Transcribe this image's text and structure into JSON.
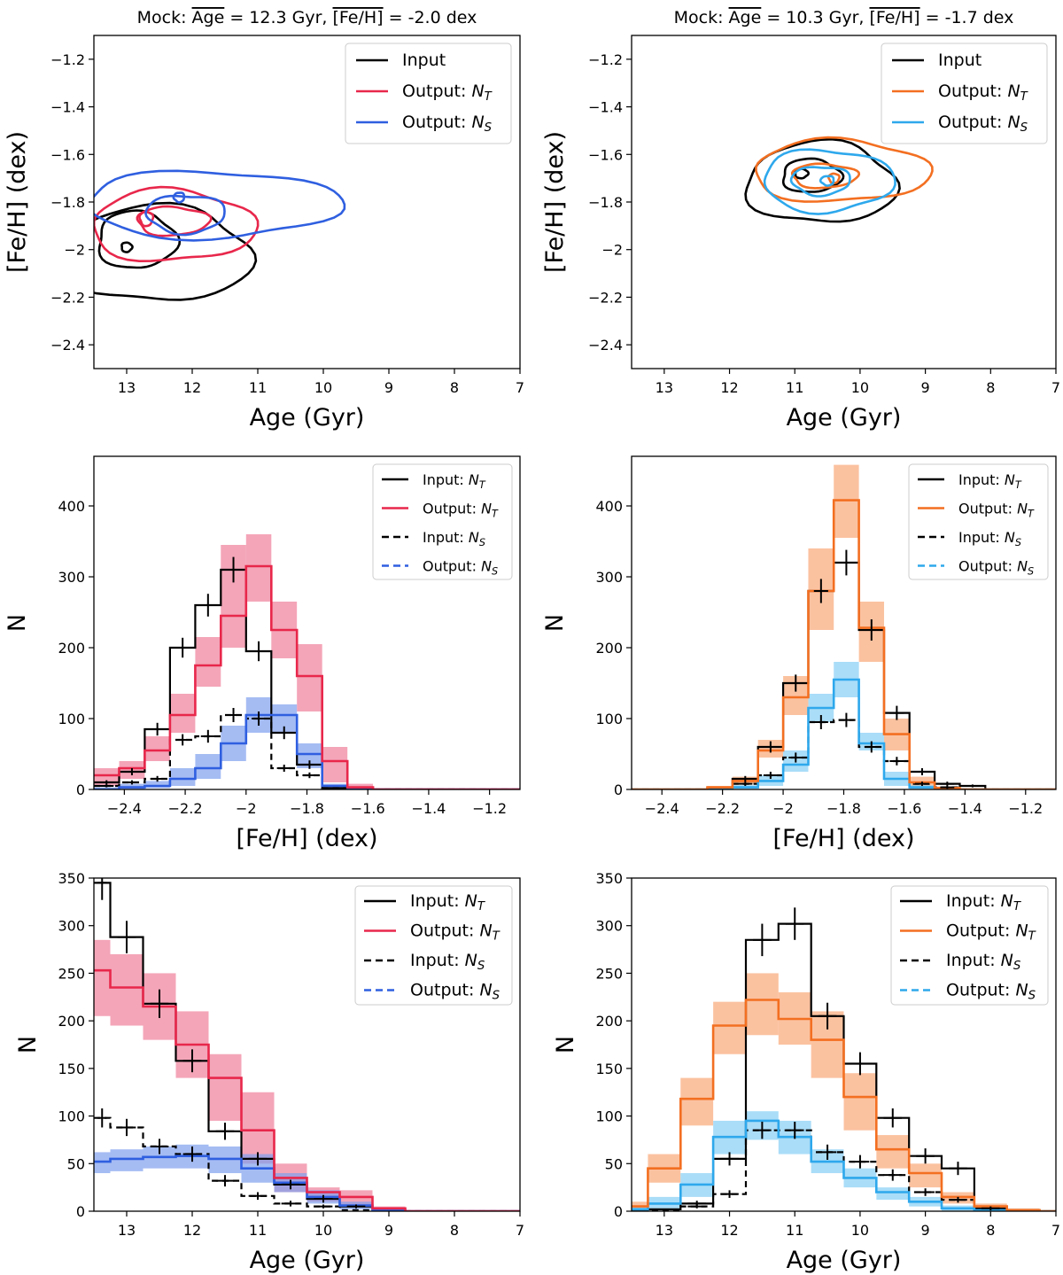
{
  "colors": {
    "input": "#000000",
    "crimson": "#e8274b",
    "blue": "#2f5fe0",
    "orange": "#f36f21",
    "skyblue": "#2ea8ec",
    "crimson_fill": "#f07f9a",
    "blue_fill": "#7f9fee",
    "orange_fill": "#f9a878",
    "skyblue_fill": "#86cff5"
  },
  "chart_data": [
    {
      "id": "contour-left",
      "type": "contour",
      "title": "Mock: Age = 12.3 Gyr, [Fe/H] = -2.0 dex",
      "title_parts": {
        "prefix": "Mock: ",
        "age_symbol": "Age",
        "age_value": " = 12.3 Gyr, ",
        "feh_symbol": "[Fe/H]",
        "feh_value": " = -2.0 dex"
      },
      "xlabel": "Age (Gyr)",
      "ylabel": "[Fe/H] (dex)",
      "xlim": [
        13.5,
        7
      ],
      "ylim": [
        -2.5,
        -1.1
      ],
      "xticks": [
        13,
        12,
        11,
        10,
        9,
        8,
        7
      ],
      "yticks": [
        -1.2,
        -1.4,
        -1.6,
        -1.8,
        -2.0,
        -2.2,
        -2.4
      ],
      "legend": [
        {
          "label": "Input",
          "sub": "",
          "color": "#000000"
        },
        {
          "label": "Output: N",
          "sub": "T",
          "color": "#e8274b"
        },
        {
          "label": "Output: N",
          "sub": "S",
          "color": "#2f5fe0"
        }
      ],
      "contours": [
        {
          "series": "Input",
          "color": "#000000",
          "levels": [
            {
              "cx": 12.55,
              "cy": -2.02,
              "rx": 1.45,
              "ry": 0.2
            },
            {
              "cx": 12.85,
              "cy": -1.96,
              "rx": 0.6,
              "ry": 0.12
            },
            {
              "cx": 13.0,
              "cy": -1.99,
              "rx": 0.08,
              "ry": 0.02
            }
          ]
        },
        {
          "series": "Output: NT",
          "color": "#e8274b",
          "levels": [
            {
              "cx": 12.3,
              "cy": -1.9,
              "rx": 1.25,
              "ry": 0.15
            },
            {
              "cx": 12.3,
              "cy": -1.88,
              "rx": 0.55,
              "ry": 0.06
            },
            {
              "cx": 12.7,
              "cy": -1.87,
              "rx": 0.1,
              "ry": 0.03
            }
          ]
        },
        {
          "series": "Output: NS",
          "color": "#2f5fe0",
          "levels": [
            {
              "cx": 11.7,
              "cy": -1.81,
              "rx": 1.95,
              "ry": 0.14
            },
            {
              "cx": 12.1,
              "cy": -1.85,
              "rx": 0.6,
              "ry": 0.08
            },
            {
              "cx": 12.2,
              "cy": -1.78,
              "rx": 0.08,
              "ry": 0.02
            }
          ]
        }
      ]
    },
    {
      "id": "contour-right",
      "type": "contour",
      "title": "Mock: Age = 10.3 Gyr, [Fe/H] = -1.7 dex",
      "title_parts": {
        "prefix": "Mock: ",
        "age_symbol": "Age",
        "age_value": " = 10.3 Gyr, ",
        "feh_symbol": "[Fe/H]",
        "feh_value": " = -1.7 dex"
      },
      "xlabel": "Age (Gyr)",
      "ylabel": "[Fe/H] (dex)",
      "xlim": [
        13.5,
        7
      ],
      "ylim": [
        -2.5,
        -1.1
      ],
      "xticks": [
        13,
        12,
        11,
        10,
        9,
        8,
        7
      ],
      "yticks": [
        -1.2,
        -1.4,
        -1.6,
        -1.8,
        -2.0,
        -2.2,
        -2.4
      ],
      "legend": [
        {
          "label": "Input",
          "sub": "",
          "color": "#000000"
        },
        {
          "label": "Output: N",
          "sub": "T",
          "color": "#f36f21"
        },
        {
          "label": "Output: N",
          "sub": "S",
          "color": "#2ea8ec"
        }
      ],
      "contours": [
        {
          "series": "Input",
          "color": "#000000",
          "levels": [
            {
              "cx": 10.6,
              "cy": -1.72,
              "rx": 1.15,
              "ry": 0.17
            },
            {
              "cx": 10.75,
              "cy": -1.69,
              "rx": 0.45,
              "ry": 0.07
            },
            {
              "cx": 10.9,
              "cy": -1.68,
              "rx": 0.1,
              "ry": 0.02
            }
          ]
        },
        {
          "series": "Output: NT",
          "color": "#f36f21",
          "levels": [
            {
              "cx": 10.3,
              "cy": -1.67,
              "rx": 1.35,
              "ry": 0.13
            },
            {
              "cx": 10.55,
              "cy": -1.69,
              "rx": 0.5,
              "ry": 0.05
            },
            {
              "cx": 10.4,
              "cy": -1.7,
              "rx": 0.08,
              "ry": 0.02
            }
          ]
        },
        {
          "series": "Output: NS",
          "color": "#2ea8ec",
          "levels": [
            {
              "cx": 10.5,
              "cy": -1.71,
              "rx": 1.0,
              "ry": 0.13
            },
            {
              "cx": 10.6,
              "cy": -1.71,
              "rx": 0.45,
              "ry": 0.06
            },
            {
              "cx": 10.5,
              "cy": -1.71,
              "rx": 0.1,
              "ry": 0.02
            }
          ]
        }
      ]
    },
    {
      "id": "feh-hist-left",
      "type": "histogram",
      "xlabel": "[Fe/H] (dex)",
      "ylabel": "N",
      "xlim": [
        -2.5,
        -1.1
      ],
      "ylim": [
        0,
        470
      ],
      "xticks": [
        -2.4,
        -2.2,
        -2.0,
        -1.8,
        -1.6,
        -1.4,
        -1.2
      ],
      "yticks": [
        0,
        100,
        200,
        300,
        400
      ],
      "edges": [
        -2.5,
        -2.417,
        -2.333,
        -2.25,
        -2.167,
        -2.083,
        -2.0,
        -1.917,
        -1.833,
        -1.75,
        -1.667,
        -1.583,
        -1.5,
        -1.417,
        -1.333,
        -1.25,
        -1.167,
        -1.1
      ],
      "legend": [
        {
          "label": "Input: N",
          "sub": "T",
          "color": "#000000",
          "dash": false
        },
        {
          "label": "Output: N",
          "sub": "T",
          "color": "#e8274b",
          "dash": false
        },
        {
          "label": "Input: N",
          "sub": "S",
          "color": "#000000",
          "dash": true
        },
        {
          "label": "Output: N",
          "sub": "S",
          "color": "#2f5fe0",
          "dash": true
        }
      ],
      "input_T": [
        10,
        25,
        85,
        200,
        260,
        310,
        195,
        80,
        35,
        2,
        0,
        0,
        0,
        0,
        0,
        0,
        0
      ],
      "input_T_err": [
        3,
        5,
        9,
        14,
        16,
        18,
        14,
        9,
        6,
        1,
        0,
        0,
        0,
        0,
        0,
        0,
        0
      ],
      "output_T": [
        20,
        30,
        55,
        105,
        175,
        245,
        315,
        225,
        160,
        40,
        3,
        0,
        0,
        0,
        0,
        0,
        0
      ],
      "output_T_low": [
        5,
        15,
        40,
        80,
        145,
        200,
        265,
        185,
        110,
        10,
        0,
        0,
        0,
        0,
        0,
        0,
        0
      ],
      "output_T_high": [
        30,
        40,
        75,
        135,
        215,
        345,
        360,
        265,
        205,
        60,
        8,
        0,
        0,
        0,
        0,
        0,
        0
      ],
      "input_S": [
        5,
        10,
        15,
        70,
        75,
        105,
        100,
        30,
        20,
        2,
        0,
        0,
        0,
        0,
        0,
        0,
        0
      ],
      "input_S_err": [
        2,
        3,
        4,
        8,
        9,
        10,
        10,
        5,
        4,
        1,
        0,
        0,
        0,
        0,
        0,
        0,
        0
      ],
      "output_S": [
        0,
        3,
        5,
        15,
        30,
        65,
        105,
        105,
        50,
        5,
        0,
        0,
        0,
        0,
        0,
        0,
        0
      ],
      "output_S_low": [
        0,
        0,
        2,
        5,
        15,
        40,
        80,
        80,
        30,
        0,
        0,
        0,
        0,
        0,
        0,
        0,
        0
      ],
      "output_S_high": [
        3,
        8,
        12,
        30,
        50,
        90,
        130,
        120,
        65,
        8,
        0,
        0,
        0,
        0,
        0,
        0,
        0
      ]
    },
    {
      "id": "feh-hist-right",
      "type": "histogram",
      "xlabel": "[Fe/H] (dex)",
      "ylabel": "N",
      "xlim": [
        -2.5,
        -1.1
      ],
      "ylim": [
        0,
        470
      ],
      "xticks": [
        -2.4,
        -2.2,
        -2.0,
        -1.8,
        -1.6,
        -1.4,
        -1.2
      ],
      "yticks": [
        0,
        100,
        200,
        300,
        400
      ],
      "edges": [
        -2.5,
        -2.333,
        -2.25,
        -2.167,
        -2.083,
        -2.0,
        -1.917,
        -1.833,
        -1.75,
        -1.667,
        -1.583,
        -1.5,
        -1.417,
        -1.333,
        -1.25,
        -1.167,
        -1.1
      ],
      "legend": [
        {
          "label": "Input: N",
          "sub": "T",
          "color": "#000000",
          "dash": false
        },
        {
          "label": "Output: N",
          "sub": "T",
          "color": "#f36f21",
          "dash": false
        },
        {
          "label": "Input: N",
          "sub": "S",
          "color": "#000000",
          "dash": true
        },
        {
          "label": "Output: N",
          "sub": "S",
          "color": "#2ea8ec",
          "dash": true
        }
      ],
      "input_T": [
        0,
        0,
        2,
        15,
        60,
        150,
        280,
        320,
        225,
        108,
        25,
        8,
        5,
        0,
        0,
        0
      ],
      "input_T_err": [
        0,
        0,
        1,
        4,
        8,
        12,
        17,
        18,
        15,
        10,
        5,
        3,
        2,
        0,
        0,
        0
      ],
      "output_T": [
        0,
        0,
        3,
        12,
        55,
        130,
        280,
        408,
        228,
        78,
        10,
        2,
        0,
        0,
        0,
        0
      ],
      "output_T_low": [
        0,
        0,
        1,
        8,
        45,
        105,
        225,
        355,
        180,
        55,
        5,
        0,
        0,
        0,
        0,
        0
      ],
      "output_T_high": [
        0,
        0,
        5,
        18,
        70,
        160,
        340,
        458,
        265,
        100,
        18,
        4,
        0,
        0,
        0,
        0
      ],
      "input_S": [
        0,
        0,
        1,
        8,
        20,
        45,
        95,
        98,
        60,
        40,
        8,
        3,
        0,
        0,
        0,
        0
      ],
      "input_S_err": [
        0,
        0,
        1,
        3,
        5,
        7,
        10,
        10,
        8,
        6,
        3,
        2,
        0,
        0,
        0,
        0
      ],
      "output_S": [
        0,
        0,
        0,
        3,
        12,
        35,
        115,
        155,
        65,
        15,
        3,
        0,
        0,
        0,
        0,
        0
      ],
      "output_S_low": [
        0,
        0,
        0,
        1,
        5,
        25,
        95,
        130,
        55,
        5,
        0,
        0,
        0,
        0,
        0,
        0
      ],
      "output_S_high": [
        0,
        0,
        2,
        6,
        20,
        55,
        135,
        180,
        80,
        25,
        6,
        0,
        0,
        0,
        0,
        0
      ]
    },
    {
      "id": "age-hist-left",
      "type": "histogram",
      "xlabel": "Age (Gyr)",
      "ylabel": "N",
      "xlim": [
        13.5,
        7
      ],
      "ylim": [
        0,
        350
      ],
      "xticks": [
        13,
        12,
        11,
        10,
        9,
        8,
        7
      ],
      "yticks": [
        0,
        50,
        100,
        150,
        200,
        250,
        300,
        350
      ],
      "edges": [
        13.5,
        13.25,
        12.75,
        12.25,
        11.75,
        11.25,
        10.75,
        10.25,
        9.75,
        9.25,
        8.75,
        8.25,
        7.75,
        7.25,
        7.0
      ],
      "legend": [
        {
          "label": "Input: N",
          "sub": "T",
          "color": "#000000",
          "dash": false
        },
        {
          "label": "Output: N",
          "sub": "T",
          "color": "#e8274b",
          "dash": false
        },
        {
          "label": "Input: N",
          "sub": "S",
          "color": "#000000",
          "dash": true
        },
        {
          "label": "Output: N",
          "sub": "S",
          "color": "#2f5fe0",
          "dash": true
        }
      ],
      "input_T": [
        345,
        288,
        218,
        158,
        84,
        55,
        28,
        13,
        5,
        1,
        0,
        0,
        0,
        0
      ],
      "input_T_err": [
        18,
        17,
        15,
        12,
        9,
        7,
        5,
        4,
        2,
        1,
        0,
        0,
        0,
        0
      ],
      "output_T": [
        253,
        235,
        215,
        175,
        140,
        85,
        35,
        20,
        15,
        3,
        0,
        0,
        0,
        0
      ],
      "output_T_low": [
        205,
        195,
        180,
        140,
        95,
        50,
        20,
        10,
        5,
        0,
        0,
        0,
        0,
        0
      ],
      "output_T_high": [
        285,
        270,
        250,
        210,
        165,
        125,
        50,
        25,
        22,
        5,
        0,
        0,
        0,
        0
      ],
      "input_S": [
        98,
        88,
        68,
        60,
        32,
        16,
        8,
        5,
        1,
        0,
        0,
        0,
        0,
        0
      ],
      "input_S_err": [
        10,
        9,
        8,
        8,
        6,
        4,
        3,
        2,
        1,
        0,
        0,
        0,
        0,
        0
      ],
      "output_S": [
        52,
        55,
        57,
        58,
        55,
        45,
        30,
        15,
        6,
        1,
        0,
        0,
        0,
        0
      ],
      "output_S_low": [
        40,
        42,
        45,
        45,
        40,
        30,
        20,
        8,
        2,
        0,
        0,
        0,
        0,
        0
      ],
      "output_S_high": [
        62,
        65,
        68,
        70,
        68,
        60,
        40,
        22,
        10,
        3,
        0,
        0,
        0,
        0
      ]
    },
    {
      "id": "age-hist-right",
      "type": "histogram",
      "xlabel": "Age (Gyr)",
      "ylabel": "N",
      "xlim": [
        13.5,
        7
      ],
      "ylim": [
        0,
        350
      ],
      "xticks": [
        13,
        12,
        11,
        10,
        9,
        8,
        7
      ],
      "yticks": [
        0,
        50,
        100,
        150,
        200,
        250,
        300,
        350
      ],
      "edges": [
        13.5,
        13.25,
        12.75,
        12.25,
        11.75,
        11.25,
        10.75,
        10.25,
        9.75,
        9.25,
        8.75,
        8.25,
        7.75,
        7.25,
        7.0
      ],
      "legend": [
        {
          "label": "Input: N",
          "sub": "T",
          "color": "#000000",
          "dash": false
        },
        {
          "label": "Output: N",
          "sub": "T",
          "color": "#f36f21",
          "dash": false
        },
        {
          "label": "Input: N",
          "sub": "S",
          "color": "#000000",
          "dash": true
        },
        {
          "label": "Output: N",
          "sub": "S",
          "color": "#2ea8ec",
          "dash": true
        }
      ],
      "input_T": [
        0,
        2,
        8,
        55,
        285,
        302,
        205,
        155,
        98,
        58,
        45,
        3,
        1,
        0
      ],
      "input_T_err": [
        0,
        1,
        3,
        7,
        17,
        17,
        14,
        12,
        10,
        8,
        7,
        2,
        1,
        0
      ],
      "output_T": [
        5,
        45,
        118,
        195,
        222,
        202,
        180,
        120,
        65,
        40,
        15,
        5,
        1,
        0
      ],
      "output_T_low": [
        2,
        30,
        90,
        165,
        185,
        175,
        140,
        85,
        45,
        25,
        8,
        2,
        0,
        0
      ],
      "output_T_high": [
        10,
        60,
        140,
        220,
        250,
        230,
        210,
        145,
        80,
        50,
        20,
        8,
        3,
        0
      ],
      "input_S": [
        0,
        1,
        5,
        18,
        85,
        85,
        62,
        52,
        38,
        20,
        12,
        2,
        0,
        0
      ],
      "input_S_err": [
        0,
        1,
        2,
        4,
        9,
        9,
        8,
        7,
        6,
        4,
        3,
        1,
        0,
        0
      ],
      "output_S": [
        2,
        8,
        28,
        78,
        95,
        78,
        52,
        35,
        20,
        10,
        3,
        1,
        0,
        0
      ],
      "output_S_low": [
        0,
        3,
        15,
        60,
        75,
        60,
        40,
        25,
        12,
        5,
        0,
        0,
        0,
        0
      ],
      "output_S_high": [
        5,
        15,
        40,
        95,
        105,
        95,
        65,
        45,
        25,
        15,
        6,
        2,
        0,
        0
      ]
    }
  ]
}
